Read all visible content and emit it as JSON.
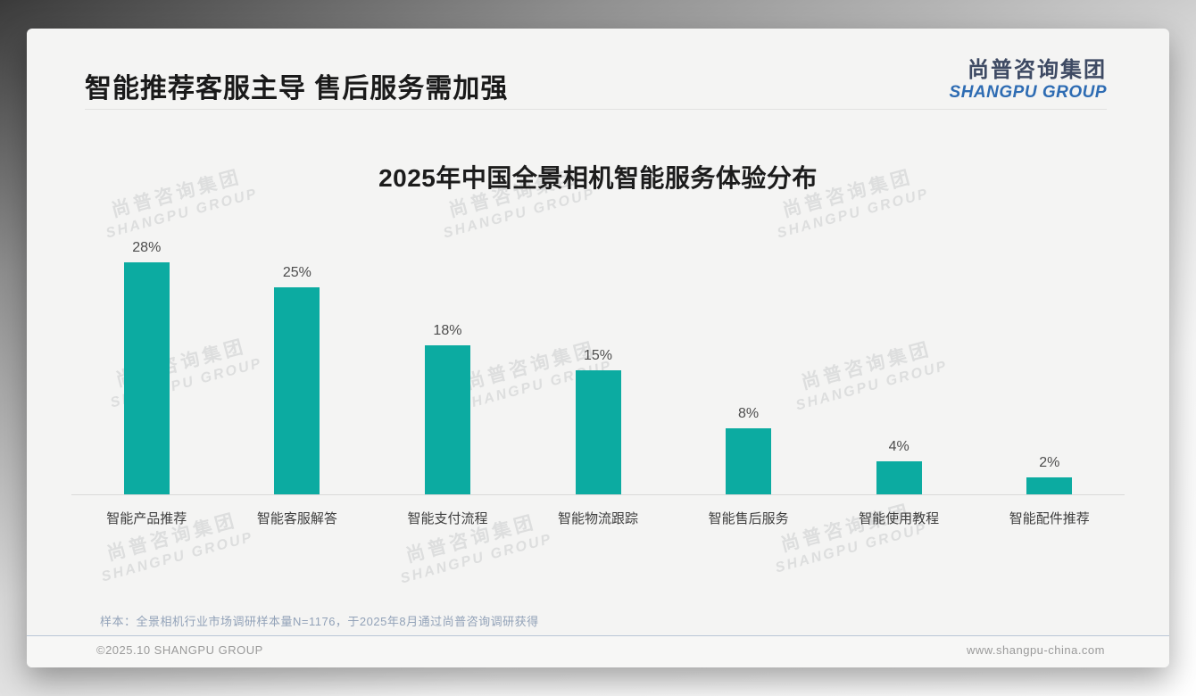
{
  "header": {
    "title": "智能推荐客服主导 售后服务需加强",
    "logo": {
      "cn": "尚普咨询集团",
      "en": "SHANGPU GROUP"
    }
  },
  "chart_data": {
    "type": "bar",
    "title": "2025年中国全景相机智能服务体验分布",
    "categories": [
      "智能产品推荐",
      "智能客服解答",
      "智能支付流程",
      "智能物流跟踪",
      "智能售后服务",
      "智能使用教程",
      "智能配件推荐"
    ],
    "values": [
      28,
      25,
      18,
      15,
      8,
      4,
      2
    ],
    "value_labels": [
      "28%",
      "25%",
      "18%",
      "15%",
      "8%",
      "4%",
      "2%"
    ],
    "unit": "%",
    "xlabel": "",
    "ylabel": "",
    "ylim": [
      0,
      30
    ],
    "grid": false,
    "legend": false,
    "bar_color": "#0caba1"
  },
  "watermark": {
    "cn": "尚普咨询集团",
    "en": "SHANGPU GROUP"
  },
  "note": "样本：全景相机行业市场调研样本量N=1176，于2025年8月通过尚普咨询调研获得",
  "footer": {
    "left": "©2025.10 SHANGPU GROUP",
    "right": "www.shangpu-china.com"
  }
}
